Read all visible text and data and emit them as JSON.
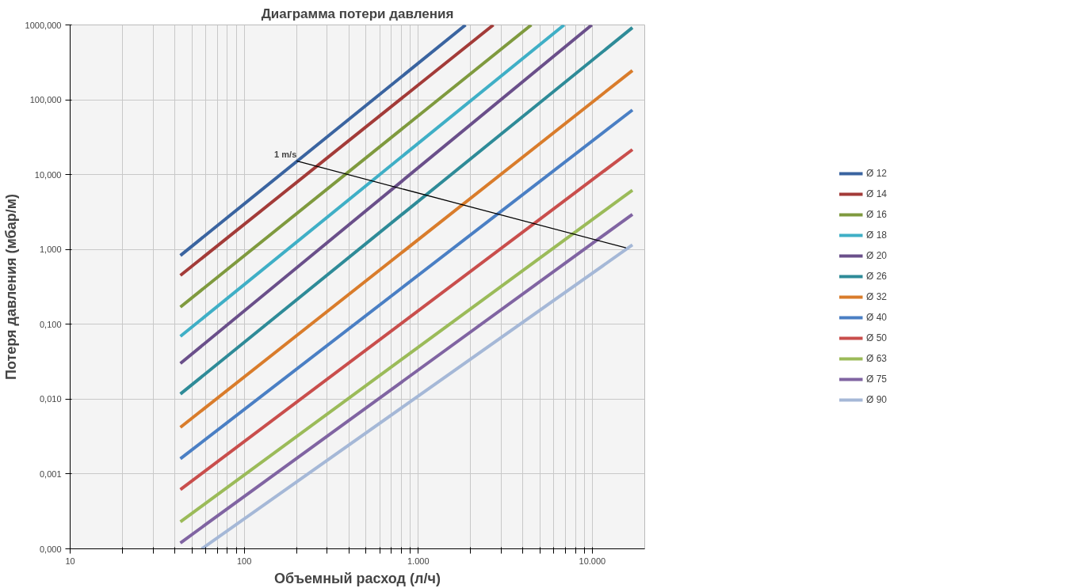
{
  "chart_data": {
    "type": "line",
    "title": "Диаграмма потери давления",
    "xlabel": "Объемный расход (л/ч)",
    "ylabel": "Потеря давления (мбар/м)",
    "log": "xy",
    "grid": true,
    "legend": "right",
    "marker": "none",
    "line_style": "solid",
    "xlim": [
      10,
      20000
    ],
    "ylim": [
      0.0001,
      1000
    ],
    "xticks": [
      10,
      {
        "value": 20,
        "label": null
      },
      {
        "value": 30,
        "label": null
      },
      {
        "value": 40,
        "label": null
      },
      {
        "value": 50,
        "label": null
      },
      {
        "value": 60,
        "label": null
      },
      {
        "value": 70,
        "label": null
      },
      {
        "value": 80,
        "label": null
      },
      {
        "value": 90,
        "label": null
      },
      100,
      {
        "value": 200,
        "label": null
      },
      {
        "value": 300,
        "label": null
      },
      {
        "value": 400,
        "label": null
      },
      {
        "value": 500,
        "label": null
      },
      {
        "value": 600,
        "label": null
      },
      {
        "value": 700,
        "label": null
      },
      {
        "value": 800,
        "label": null
      },
      {
        "value": 900,
        "label": null
      },
      {
        "value": 1000,
        "label": "1.000"
      },
      {
        "value": 2000,
        "label": null
      },
      {
        "value": 3000,
        "label": null
      },
      {
        "value": 4000,
        "label": null
      },
      {
        "value": 5000,
        "label": null
      },
      {
        "value": 6000,
        "label": null
      },
      {
        "value": 7000,
        "label": null
      },
      {
        "value": 8000,
        "label": null
      },
      {
        "value": 9000,
        "label": null
      },
      {
        "value": 10000,
        "label": "10.000"
      }
    ],
    "yticks": [
      {
        "value": 0.0001,
        "label": "0,000"
      },
      {
        "value": 0.001,
        "label": "0,001"
      },
      {
        "value": 0.01,
        "label": "0,010"
      },
      {
        "value": 0.1,
        "label": "0,100"
      },
      {
        "value": 1,
        "label": "1,000"
      },
      {
        "value": 10,
        "label": "10,000"
      },
      {
        "value": 100,
        "label": "100,000"
      },
      {
        "value": 1000,
        "label": "1000,000"
      }
    ],
    "series": [
      {
        "name": "Ø 12",
        "color": "#3a64a0",
        "x": [
          43,
          1870
        ],
        "values": [
          0.83,
          1000
        ]
      },
      {
        "name": "Ø 14",
        "color": "#a33b38",
        "x": [
          43,
          2700
        ],
        "values": [
          0.45,
          1000
        ]
      },
      {
        "name": "Ø 16",
        "color": "#7f9a3e",
        "x": [
          43,
          4460
        ],
        "values": [
          0.17,
          1000
        ]
      },
      {
        "name": "Ø 18",
        "color": "#3fafc6",
        "x": [
          43,
          6890
        ],
        "values": [
          0.069,
          1000
        ]
      },
      {
        "name": "Ø 20",
        "color": "#6a4f8a",
        "x": [
          43,
          9930
        ],
        "values": [
          0.03,
          1000
        ]
      },
      {
        "name": "Ø 26",
        "color": "#2e8b98",
        "x": [
          43,
          17000
        ],
        "values": [
          0.0117,
          920
        ]
      },
      {
        "name": "Ø 32",
        "color": "#d97c2b",
        "x": [
          43,
          17000
        ],
        "values": [
          0.0042,
          246
        ]
      },
      {
        "name": "Ø 40",
        "color": "#4a7fc4",
        "x": [
          43,
          17000
        ],
        "values": [
          0.0016,
          73
        ]
      },
      {
        "name": "Ø 50",
        "color": "#c94e4c",
        "x": [
          43,
          17000
        ],
        "values": [
          0.00062,
          21.6
        ]
      },
      {
        "name": "Ø 63",
        "color": "#9bbb59",
        "x": [
          43,
          17000
        ],
        "values": [
          0.00023,
          6.2
        ]
      },
      {
        "name": "Ø 75",
        "color": "#8064a2",
        "x": [
          43,
          17000
        ],
        "values": [
          0.00012,
          2.95
        ]
      },
      {
        "name": "Ø 90",
        "color": "#a5b8d7",
        "x": [
          57,
          17000
        ],
        "values": [
          0.0001,
          1.15
        ]
      },
      {
        "color": "#000000",
        "x": [
          200,
          15600
        ],
        "values": [
          15.2,
          1.05
        ]
      }
    ],
    "annotations": [
      {
        "text": "1 m/s",
        "x": 200,
        "y": 15.2
      }
    ]
  }
}
